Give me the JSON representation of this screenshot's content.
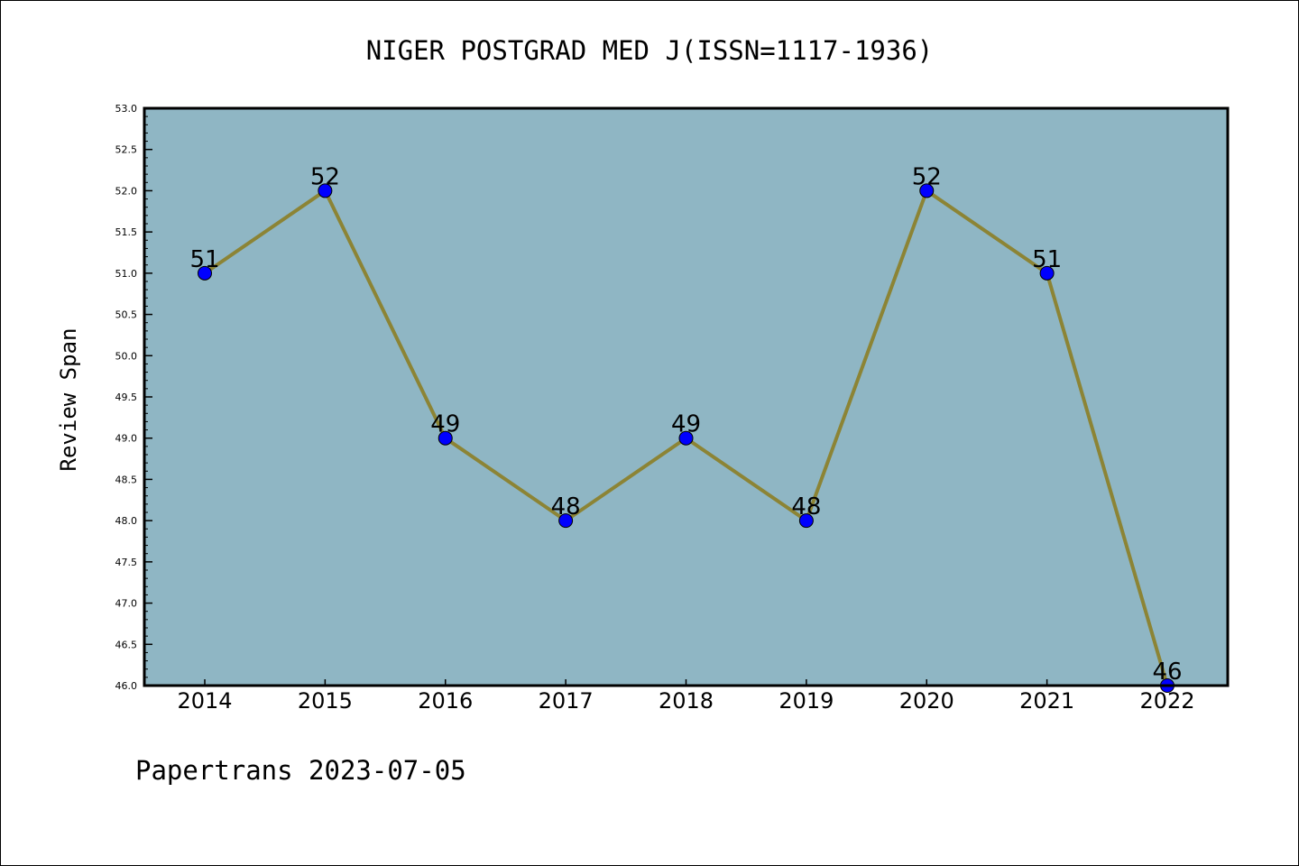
{
  "chart_data": {
    "type": "line",
    "title": "NIGER POSTGRAD MED J(ISSN=1117-1936)",
    "xlabel": "",
    "ylabel": "Review Span",
    "categories": [
      "2014",
      "2015",
      "2016",
      "2017",
      "2018",
      "2019",
      "2020",
      "2021",
      "2022"
    ],
    "series": [
      {
        "values": [
          51,
          52,
          49,
          48,
          49,
          48,
          52,
          51,
          46
        ]
      }
    ],
    "data_labels": [
      "51",
      "52",
      "49",
      "48",
      "49",
      "48",
      "52",
      "51",
      "46"
    ],
    "ylim": [
      46.0,
      53.0
    ],
    "y_ticks": [
      "46.0",
      "46.5",
      "47.0",
      "47.5",
      "48.0",
      "48.5",
      "49.0",
      "49.5",
      "50.0",
      "50.5",
      "51.0",
      "51.5",
      "52.0",
      "52.5",
      "53.0"
    ],
    "grid": false,
    "legend": "none",
    "footer": "Papertrans 2023-07-05",
    "colors": {
      "plot_background": "#8fb6c4",
      "line": "#8c8435",
      "marker": "#0000ff",
      "axes": "#000000"
    }
  }
}
